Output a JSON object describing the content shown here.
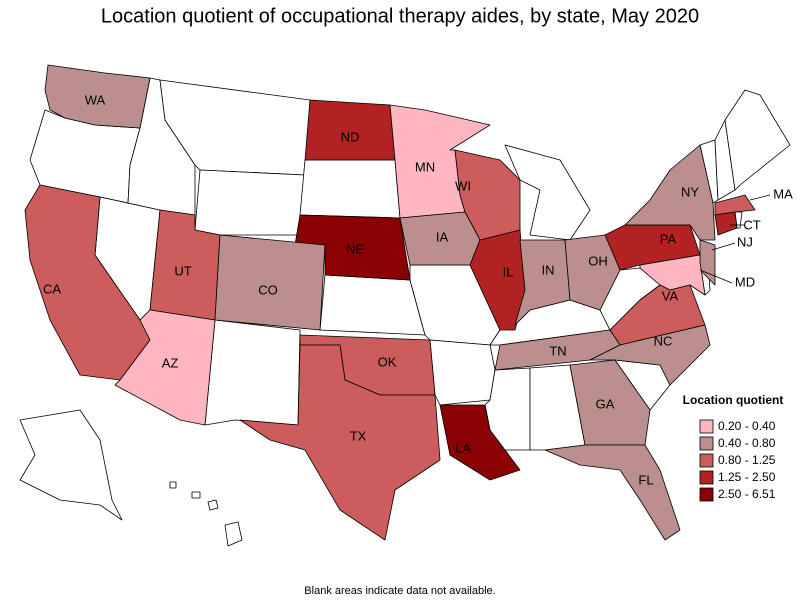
{
  "title": "Location quotient of occupational therapy aides, by state, May 2020",
  "note": "Blank areas indicate data not available.",
  "legend": {
    "title": "Location quotient",
    "items": [
      {
        "label": "0.20 - 0.40",
        "color": "#ffb6c1"
      },
      {
        "label": "0.40 - 0.80",
        "color": "#bc8f8f"
      },
      {
        "label": "0.80 - 1.25",
        "color": "#cd5c5c"
      },
      {
        "label": "1.25 - 2.50",
        "color": "#b22222"
      },
      {
        "label": "2.50 - 6.51",
        "color": "#8b0000"
      }
    ]
  },
  "states": [
    {
      "label": "WA",
      "class": 1
    },
    {
      "label": "ND",
      "class": 3
    },
    {
      "label": "MN",
      "class": 0
    },
    {
      "label": "WI",
      "class": 2
    },
    {
      "label": "NY",
      "class": 1
    },
    {
      "label": "MA",
      "class": 2
    },
    {
      "label": "CT",
      "class": 3
    },
    {
      "label": "NJ",
      "class": 1
    },
    {
      "label": "PA",
      "class": 3
    },
    {
      "label": "MD",
      "class": 0
    },
    {
      "label": "NE",
      "class": 4
    },
    {
      "label": "IA",
      "class": 1
    },
    {
      "label": "IL",
      "class": 3
    },
    {
      "label": "IN",
      "class": 1
    },
    {
      "label": "OH",
      "class": 1
    },
    {
      "label": "VA",
      "class": 2
    },
    {
      "label": "CA",
      "class": 2
    },
    {
      "label": "UT",
      "class": 2
    },
    {
      "label": "CO",
      "class": 1
    },
    {
      "label": "AZ",
      "class": 0
    },
    {
      "label": "OK",
      "class": 2
    },
    {
      "label": "TN",
      "class": 1
    },
    {
      "label": "NC",
      "class": 1
    },
    {
      "label": "TX",
      "class": 2
    },
    {
      "label": "GA",
      "class": 1
    },
    {
      "label": "LA",
      "class": 4
    },
    {
      "label": "FL",
      "class": 1
    }
  ]
}
